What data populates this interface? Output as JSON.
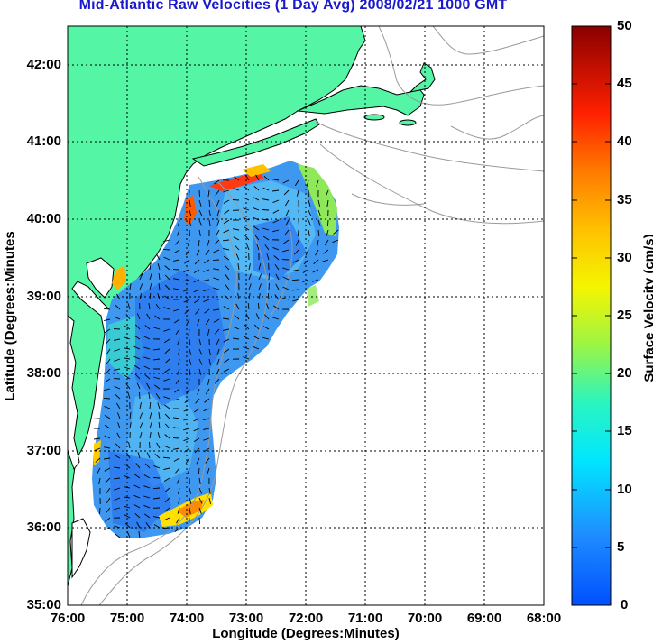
{
  "title": "Mid-Atlantic Raw Velocities (1 Day Avg) 2008/02/21 1000 GMT",
  "xlabel": "Longitude (Degrees:Minutes)",
  "ylabel": "Latitude (Degrees:Minutes",
  "colorbar_label": "Surface Velocity (cm/s)",
  "x_ticks": [
    "76:00",
    "75:00",
    "74:00",
    "73:00",
    "72:00",
    "71:00",
    "70:00",
    "69:00",
    "68:00"
  ],
  "y_ticks": [
    "42:00",
    "41:00",
    "40:00",
    "39:00",
    "38:00",
    "37:00",
    "36:00",
    "35:00"
  ],
  "colorbar_ticks": [
    "50",
    "45",
    "40",
    "35",
    "30",
    "25",
    "20",
    "15",
    "10",
    "5",
    "0"
  ],
  "colors": {
    "land": "#55f5a6",
    "title": "#1a1acc",
    "coast_line": "#000000",
    "bathymetry": "#9a9a9a",
    "grid": "#000000"
  },
  "chart_data": {
    "type": "heatmap",
    "subtype": "surface current vector field map",
    "xlim": [
      -76,
      -68
    ],
    "ylim": [
      35,
      42.5
    ],
    "colorbar": {
      "min": 0,
      "max": 50,
      "unit": "cm/s",
      "colormap": "jet"
    },
    "grid": true
  }
}
